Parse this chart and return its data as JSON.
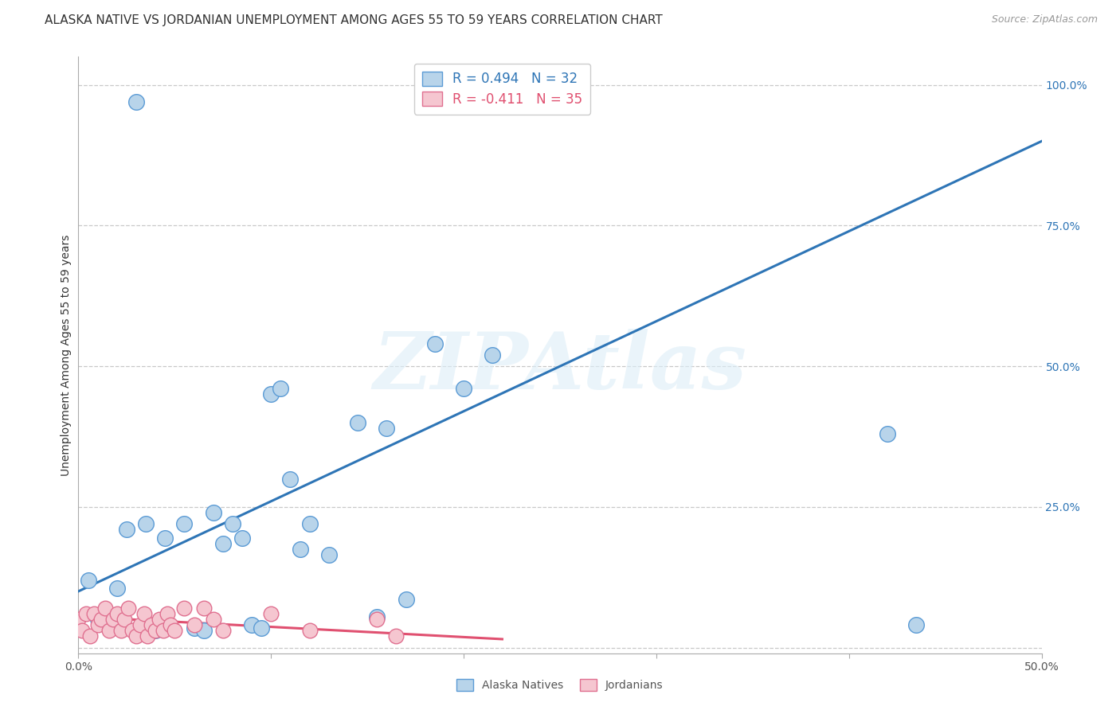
{
  "title": "ALASKA NATIVE VS JORDANIAN UNEMPLOYMENT AMONG AGES 55 TO 59 YEARS CORRELATION CHART",
  "source": "Source: ZipAtlas.com",
  "ylabel": "Unemployment Among Ages 55 to 59 years",
  "xlim": [
    0.0,
    0.5
  ],
  "ylim": [
    -0.01,
    1.05
  ],
  "x_ticks": [
    0.0,
    0.1,
    0.2,
    0.3,
    0.4,
    0.5
  ],
  "x_tick_labels": [
    "0.0%",
    "",
    "",
    "",
    "",
    "50.0%"
  ],
  "y_ticks_right": [
    0.0,
    0.25,
    0.5,
    0.75,
    1.0
  ],
  "y_tick_labels_right": [
    "",
    "25.0%",
    "50.0%",
    "75.0%",
    "100.0%"
  ],
  "alaska_R": 0.494,
  "alaska_N": 32,
  "jordan_R": -0.411,
  "jordan_N": 35,
  "alaska_color": "#b8d4ea",
  "alaska_edge_color": "#5b9bd5",
  "alaska_line_color": "#2e75b6",
  "jordan_color": "#f5c6d0",
  "jordan_edge_color": "#e07090",
  "jordan_line_color": "#e05070",
  "background_color": "#ffffff",
  "watermark_text": "ZIPAtlas",
  "alaska_x": [
    0.03,
    0.005,
    0.01,
    0.02,
    0.025,
    0.035,
    0.04,
    0.045,
    0.055,
    0.06,
    0.065,
    0.07,
    0.075,
    0.08,
    0.085,
    0.09,
    0.095,
    0.1,
    0.105,
    0.11,
    0.115,
    0.12,
    0.13,
    0.145,
    0.155,
    0.16,
    0.17,
    0.185,
    0.2,
    0.215,
    0.42,
    0.435
  ],
  "alaska_y": [
    0.97,
    0.12,
    0.05,
    0.105,
    0.21,
    0.22,
    0.03,
    0.195,
    0.22,
    0.035,
    0.03,
    0.24,
    0.185,
    0.22,
    0.195,
    0.04,
    0.035,
    0.45,
    0.46,
    0.3,
    0.175,
    0.22,
    0.165,
    0.4,
    0.055,
    0.39,
    0.085,
    0.54,
    0.46,
    0.52,
    0.38,
    0.04
  ],
  "jordan_x": [
    0.0,
    0.002,
    0.004,
    0.006,
    0.008,
    0.01,
    0.012,
    0.014,
    0.016,
    0.018,
    0.02,
    0.022,
    0.024,
    0.026,
    0.028,
    0.03,
    0.032,
    0.034,
    0.036,
    0.038,
    0.04,
    0.042,
    0.044,
    0.046,
    0.048,
    0.05,
    0.055,
    0.06,
    0.065,
    0.07,
    0.075,
    0.1,
    0.12,
    0.155,
    0.165
  ],
  "jordan_y": [
    0.05,
    0.03,
    0.06,
    0.02,
    0.06,
    0.04,
    0.05,
    0.07,
    0.03,
    0.05,
    0.06,
    0.03,
    0.05,
    0.07,
    0.03,
    0.02,
    0.04,
    0.06,
    0.02,
    0.04,
    0.03,
    0.05,
    0.03,
    0.06,
    0.04,
    0.03,
    0.07,
    0.04,
    0.07,
    0.05,
    0.03,
    0.06,
    0.03,
    0.05,
    0.02
  ],
  "alaska_line_x": [
    0.0,
    0.5
  ],
  "alaska_line_y": [
    0.1,
    0.9
  ],
  "jordan_line_x": [
    0.0,
    0.22
  ],
  "jordan_line_y": [
    0.055,
    0.015
  ],
  "grid_color": "#c8c8c8",
  "title_fontsize": 11,
  "axis_label_fontsize": 10,
  "tick_fontsize": 10,
  "legend_fontsize": 12
}
